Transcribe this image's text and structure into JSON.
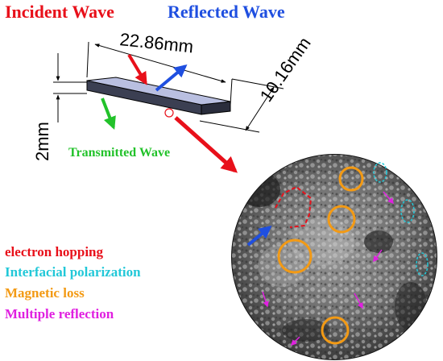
{
  "labels": {
    "incident_wave": "Incident Wave",
    "reflected_wave": "Reflected Wave",
    "transmitted_wave": "Transmitted Wave"
  },
  "dimensions": {
    "length": "22.86mm",
    "width": "10.16mm",
    "thickness": "2mm"
  },
  "legend": [
    {
      "text": "electron hopping",
      "color": "#e8101a"
    },
    {
      "text": "Interfacial polarization",
      "color": "#22c8d8"
    },
    {
      "text": "Magnetic loss",
      "color": "#f39a14"
    },
    {
      "text": "Multiple reflection",
      "color": "#e020e0"
    }
  ],
  "colors": {
    "incident": "#e8101a",
    "reflected": "#1f4fe0",
    "transmitted": "#22c22a",
    "sample_face": "#b9bfe0",
    "sample_side": "#3b3f52"
  },
  "icons": {
    "sem_image": "sem-micrograph-circle"
  }
}
